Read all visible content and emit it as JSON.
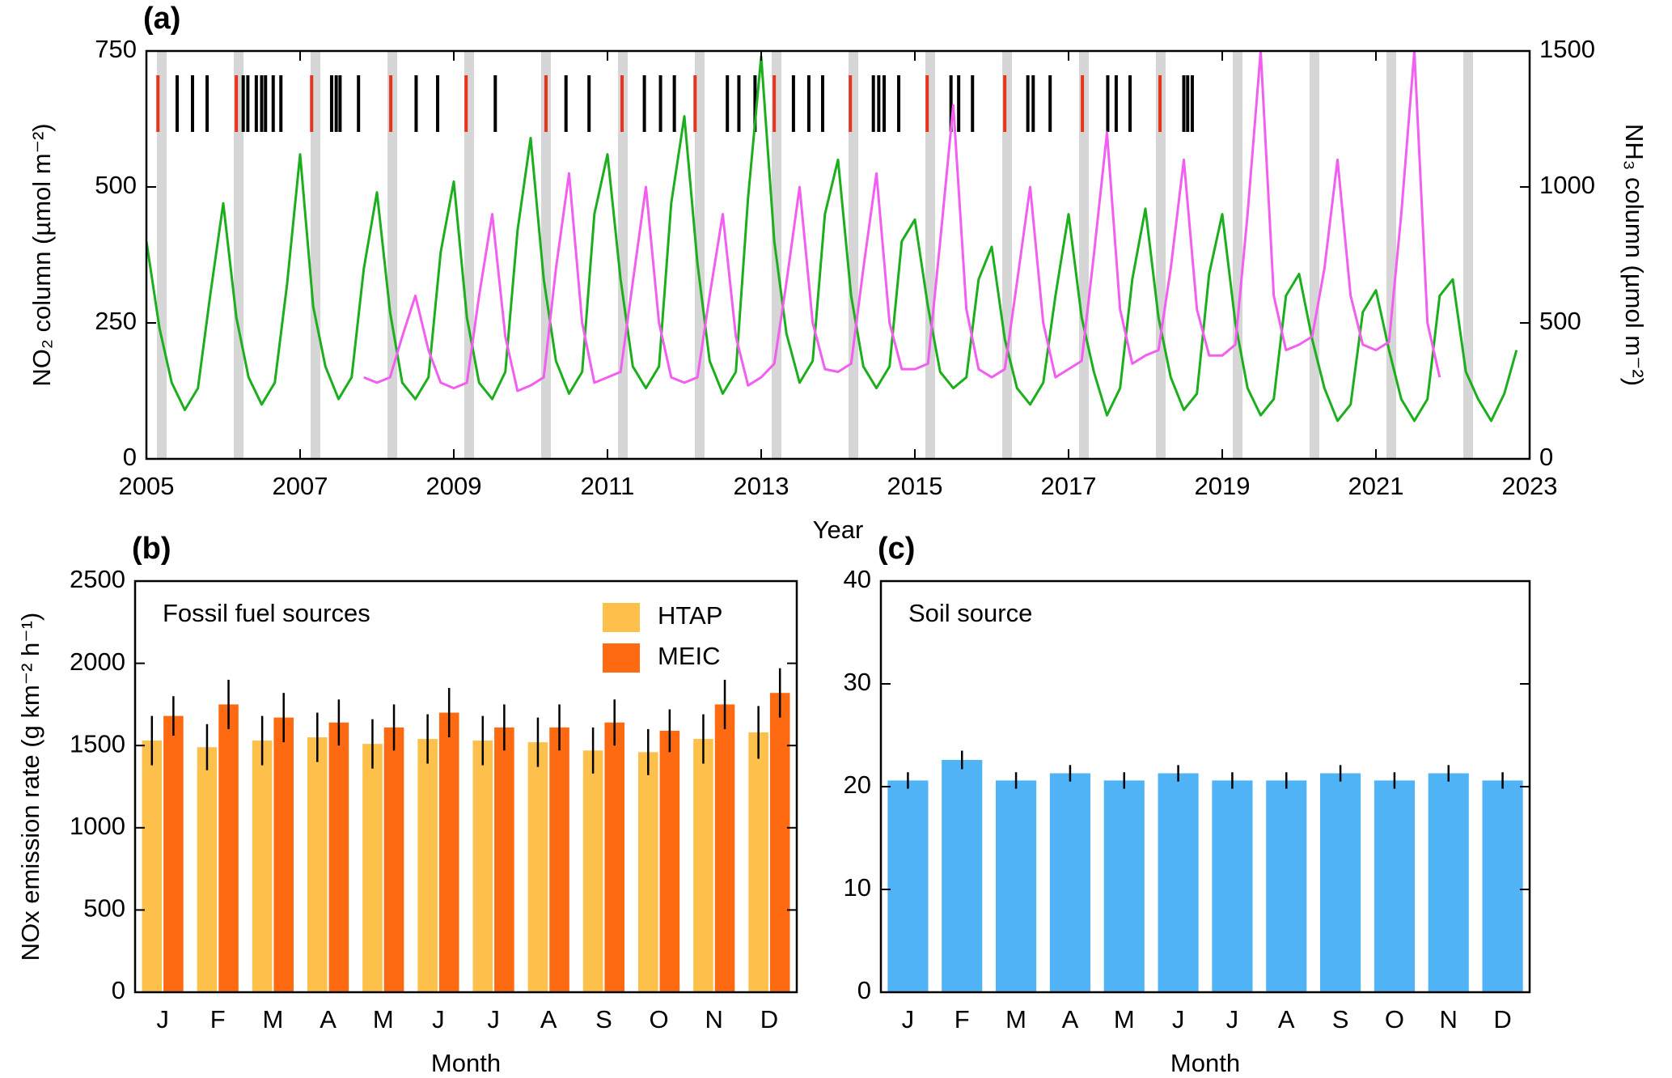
{
  "chart_data": [
    {
      "type": "line",
      "panel_label": "(a)",
      "x_label": "Year",
      "y_label": "NO₂ column (µmol m⁻²)",
      "y2_label": "NH₃ column (µmol m⁻²)",
      "xlim": [
        2005,
        2023
      ],
      "xticks": [
        2005,
        2007,
        2009,
        2011,
        2013,
        2015,
        2017,
        2019,
        2021,
        2023
      ],
      "ylim": [
        0,
        750
      ],
      "yticks": [
        0,
        250,
        500,
        750
      ],
      "y2lim": [
        0,
        1500
      ],
      "y2ticks": [
        0,
        500,
        1000,
        1500
      ],
      "shaded": [
        2005.2,
        2006.2,
        2007.2,
        2008.2,
        2009.2,
        2010.2,
        2011.2,
        2012.2,
        2013.2,
        2014.2,
        2015.2,
        2016.2,
        2017.2,
        2018.2,
        2019.2,
        2020.2,
        2021.2,
        2022.2
      ],
      "shaded_color": "#d6d6d6",
      "red_lines": [
        2005.15,
        2006.17,
        2007.15,
        2008.18,
        2009.16,
        2010.2,
        2011.19,
        2012.14,
        2013.17,
        2014.16,
        2015.16,
        2016.17,
        2017.18,
        2018.19
      ],
      "red_color": "#e8341c",
      "black_lines": [
        2005.4,
        2005.6,
        2005.79,
        2006.26,
        2006.32,
        2006.43,
        2006.5,
        2006.55,
        2006.65,
        2006.75,
        2007.41,
        2007.47,
        2007.52,
        2007.76,
        2008.51,
        2008.79,
        2009.54,
        2010.46,
        2010.76,
        2011.48,
        2011.69,
        2011.87,
        2012.56,
        2012.71,
        2012.92,
        2013.42,
        2013.62,
        2013.8,
        2014.46,
        2014.53,
        2014.6,
        2014.79,
        2015.47,
        2015.57,
        2015.75,
        2016.47,
        2016.54,
        2016.76,
        2017.51,
        2017.62,
        2017.8,
        2018.5,
        2018.55,
        2018.61
      ],
      "black_color": "#000000",
      "series": [
        {
          "color": "#1cae1c",
          "axis": "y",
          "x": [
            2005,
            2005.17,
            2005.33,
            2005.5,
            2005.67,
            2005.83,
            2006,
            2006.17,
            2006.33,
            2006.5,
            2006.67,
            2006.83,
            2007,
            2007.17,
            2007.33,
            2007.5,
            2007.67,
            2007.83,
            2008,
            2008.17,
            2008.33,
            2008.5,
            2008.67,
            2008.83,
            2009,
            2009.17,
            2009.33,
            2009.5,
            2009.67,
            2009.83,
            2010,
            2010.17,
            2010.33,
            2010.5,
            2010.67,
            2010.83,
            2011,
            2011.17,
            2011.33,
            2011.5,
            2011.67,
            2011.83,
            2012,
            2012.17,
            2012.33,
            2012.5,
            2012.67,
            2012.83,
            2013,
            2013.17,
            2013.33,
            2013.5,
            2013.67,
            2013.83,
            2014,
            2014.17,
            2014.33,
            2014.5,
            2014.67,
            2014.83,
            2015,
            2015.17,
            2015.33,
            2015.5,
            2015.67,
            2015.83,
            2016,
            2016.17,
            2016.33,
            2016.5,
            2016.67,
            2016.83,
            2017,
            2017.17,
            2017.33,
            2017.5,
            2017.67,
            2017.83,
            2018,
            2018.17,
            2018.33,
            2018.5,
            2018.67,
            2018.83,
            2019,
            2019.17,
            2019.33,
            2019.5,
            2019.67,
            2019.83,
            2020,
            2020.17,
            2020.33,
            2020.5,
            2020.67,
            2020.83,
            2021,
            2021.17,
            2021.33,
            2021.5,
            2021.67,
            2021.83,
            2022,
            2022.17,
            2022.33,
            2022.5,
            2022.67,
            2022.83
          ],
          "values": [
            400,
            240,
            140,
            90,
            130,
            300,
            470,
            260,
            150,
            100,
            140,
            320,
            560,
            280,
            170,
            110,
            150,
            350,
            490,
            270,
            140,
            110,
            150,
            380,
            510,
            260,
            140,
            110,
            160,
            420,
            590,
            330,
            180,
            120,
            160,
            450,
            560,
            330,
            170,
            130,
            170,
            470,
            630,
            360,
            180,
            120,
            160,
            480,
            740,
            400,
            230,
            140,
            180,
            450,
            550,
            300,
            170,
            130,
            170,
            400,
            440,
            280,
            160,
            130,
            150,
            330,
            390,
            220,
            130,
            100,
            140,
            300,
            450,
            260,
            160,
            80,
            130,
            330,
            460,
            260,
            150,
            90,
            120,
            340,
            450,
            250,
            130,
            80,
            110,
            300,
            340,
            220,
            130,
            70,
            100,
            270,
            310,
            200,
            110,
            70,
            110,
            300,
            330,
            160,
            110,
            70,
            120,
            200
          ]
        },
        {
          "color": "#f25ef0",
          "axis": "y2",
          "x": [
            2007.83,
            2008,
            2008.17,
            2008.33,
            2008.5,
            2008.67,
            2008.83,
            2009,
            2009.17,
            2009.33,
            2009.5,
            2009.67,
            2009.83,
            2010,
            2010.17,
            2010.33,
            2010.5,
            2010.67,
            2010.83,
            2011,
            2011.17,
            2011.33,
            2011.5,
            2011.67,
            2011.83,
            2012,
            2012.17,
            2012.33,
            2012.5,
            2012.67,
            2012.83,
            2013,
            2013.17,
            2013.33,
            2013.5,
            2013.67,
            2013.83,
            2014,
            2014.17,
            2014.33,
            2014.5,
            2014.67,
            2014.83,
            2015,
            2015.17,
            2015.33,
            2015.5,
            2015.67,
            2015.83,
            2016,
            2016.17,
            2016.33,
            2016.5,
            2016.67,
            2016.83,
            2017,
            2017.17,
            2017.33,
            2017.5,
            2017.67,
            2017.83,
            2018,
            2018.17,
            2018.33,
            2018.5,
            2018.67,
            2018.83,
            2019,
            2019.17,
            2019.33,
            2019.5,
            2019.67,
            2019.83,
            2020,
            2020.17,
            2020.33,
            2020.5,
            2020.67,
            2020.83,
            2021,
            2021.17,
            2021.33,
            2021.5,
            2021.67,
            2021.83
          ],
          "values": [
            300,
            280,
            300,
            450,
            600,
            400,
            280,
            260,
            280,
            600,
            900,
            450,
            250,
            270,
            300,
            700,
            1050,
            500,
            280,
            300,
            320,
            650,
            1000,
            500,
            300,
            280,
            300,
            600,
            900,
            450,
            270,
            300,
            350,
            650,
            1000,
            500,
            330,
            320,
            350,
            700,
            1050,
            500,
            330,
            330,
            350,
            800,
            1300,
            550,
            330,
            300,
            330,
            650,
            1000,
            500,
            300,
            330,
            360,
            750,
            1200,
            550,
            350,
            380,
            400,
            700,
            1100,
            550,
            380,
            380,
            420,
            900,
            1500,
            600,
            400,
            420,
            450,
            700,
            1100,
            600,
            420,
            400,
            430,
            900,
            1500,
            500,
            300
          ]
        }
      ]
    },
    {
      "type": "bar",
      "panel_label": "(b)",
      "annotation": "Fossil fuel sources",
      "x_label": "Month",
      "y_label": "NOx emission rate (g km⁻² h⁻¹)",
      "categories": [
        "J",
        "F",
        "M",
        "A",
        "M",
        "J",
        "J",
        "A",
        "S",
        "O",
        "N",
        "D"
      ],
      "ylim": [
        0,
        2500
      ],
      "yticks": [
        0,
        500,
        1000,
        1500,
        2000,
        2500
      ],
      "legend": "upper right",
      "series": [
        {
          "name": "HTAP",
          "color": "#fdc04a",
          "values": [
            1530,
            1490,
            1530,
            1550,
            1510,
            1540,
            1530,
            1520,
            1470,
            1460,
            1540,
            1580
          ],
          "errors": [
            150,
            140,
            150,
            150,
            150,
            150,
            150,
            150,
            140,
            140,
            150,
            160
          ]
        },
        {
          "name": "MEIC",
          "color": "#fd6a12",
          "values": [
            1680,
            1750,
            1670,
            1640,
            1610,
            1700,
            1610,
            1610,
            1640,
            1590,
            1750,
            1820
          ],
          "errors": [
            120,
            150,
            150,
            140,
            140,
            150,
            140,
            140,
            140,
            130,
            150,
            150
          ]
        }
      ]
    },
    {
      "type": "bar",
      "panel_label": "(c)",
      "annotation": "Soil source",
      "x_label": "Month",
      "categories": [
        "J",
        "F",
        "M",
        "A",
        "M",
        "J",
        "J",
        "A",
        "S",
        "O",
        "N",
        "D"
      ],
      "ylim": [
        0,
        40
      ],
      "yticks": [
        0,
        10,
        20,
        30,
        40
      ],
      "series": [
        {
          "color": "#4fb3f6",
          "values": [
            20.6,
            22.6,
            20.6,
            21.3,
            20.6,
            21.3,
            20.6,
            20.6,
            21.3,
            20.6,
            21.3,
            20.6
          ],
          "errors": [
            0.8,
            0.9,
            0.8,
            0.8,
            0.8,
            0.8,
            0.8,
            0.8,
            0.8,
            0.8,
            0.8,
            0.8
          ]
        }
      ]
    }
  ]
}
